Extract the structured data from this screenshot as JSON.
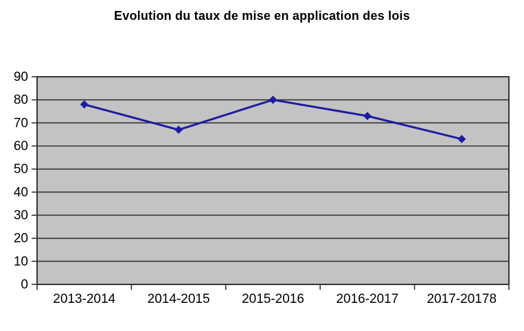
{
  "chart_data": {
    "type": "line",
    "title": "Evolution du taux de mise en application des lois",
    "categories": [
      "2013-2014",
      "2014-2015",
      "2015-2016",
      "2016-2017",
      "2017-20178"
    ],
    "values": [
      78,
      67,
      80,
      73,
      63
    ],
    "xlabel": "",
    "ylabel": "",
    "ylim": [
      0,
      90
    ],
    "yticks": [
      0,
      10,
      20,
      30,
      40,
      50,
      60,
      70,
      80,
      90
    ],
    "grid": true,
    "legend": false,
    "marker": "diamond",
    "colors": {
      "line": "#1c1ca0",
      "marker": "#1c1ca0",
      "plot_background": "#c3c3c3",
      "gridline": "#333333",
      "plot_border": "#333333",
      "tick": "#333333",
      "text": "#000000",
      "page_background": "#ffffff"
    }
  }
}
